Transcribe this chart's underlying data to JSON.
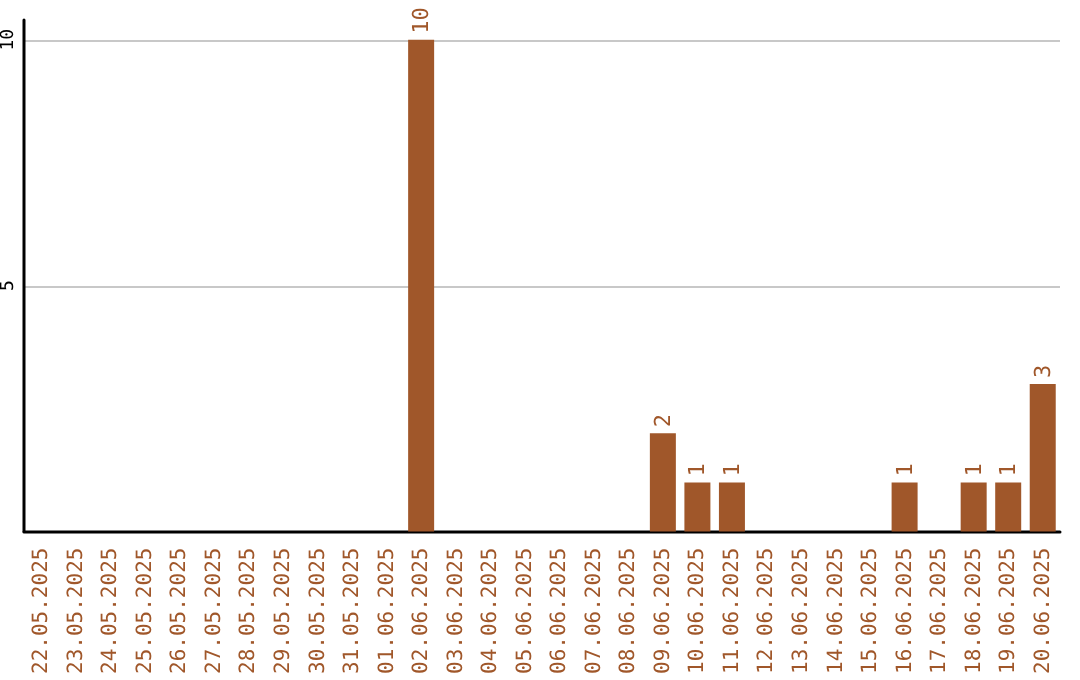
{
  "chart_data": {
    "type": "bar",
    "categories": [
      "22.05.2025",
      "23.05.2025",
      "24.05.2025",
      "25.05.2025",
      "26.05.2025",
      "27.05.2025",
      "28.05.2025",
      "29.05.2025",
      "30.05.2025",
      "31.05.2025",
      "01.06.2025",
      "02.06.2025",
      "03.06.2025",
      "04.06.2025",
      "05.06.2025",
      "06.06.2025",
      "07.06.2025",
      "08.06.2025",
      "09.06.2025",
      "10.06.2025",
      "11.06.2025",
      "12.06.2025",
      "13.06.2025",
      "14.06.2025",
      "15.06.2025",
      "16.06.2025",
      "17.06.2025",
      "18.06.2025",
      "19.06.2025",
      "20.06.2025"
    ],
    "values": [
      0,
      0,
      0,
      0,
      0,
      0,
      0,
      0,
      0,
      0,
      0,
      10,
      0,
      0,
      0,
      0,
      0,
      0,
      2,
      1,
      1,
      0,
      0,
      0,
      0,
      1,
      0,
      1,
      1,
      3
    ],
    "value_labels": [
      null,
      null,
      null,
      null,
      null,
      null,
      null,
      null,
      null,
      null,
      null,
      "10",
      null,
      null,
      null,
      null,
      null,
      null,
      "2",
      "1",
      "1",
      null,
      null,
      null,
      null,
      "1",
      null,
      "1",
      "1",
      "3"
    ],
    "color": "#a0572a",
    "ylim": [
      0,
      10.4
    ],
    "yticks": [
      5,
      10
    ],
    "grid": "y"
  }
}
